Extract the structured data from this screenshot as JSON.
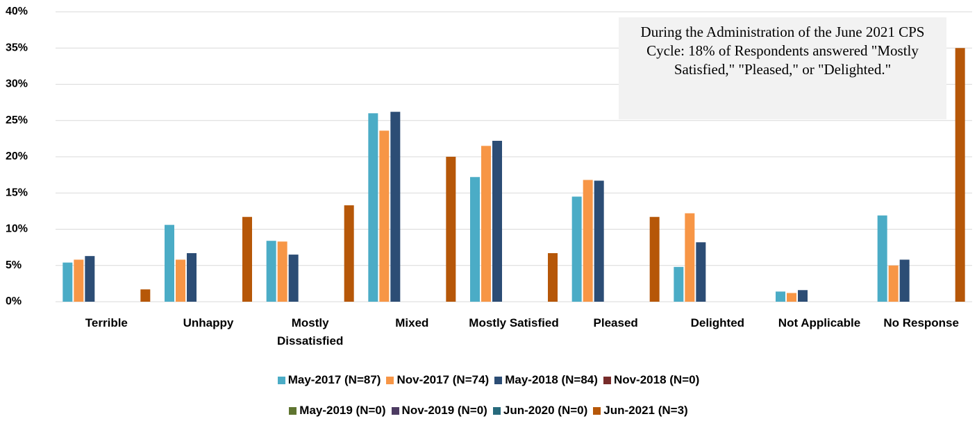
{
  "chart_data": {
    "type": "bar",
    "annotation": "During the Administration of the June 2021 CPS Cycle: 18% of Respondents answered \"Mostly Satisfied,\" \"Pleased,\" or \"Delighted.\"",
    "categories": [
      "Terrible",
      "Unhappy",
      "Mostly Dissatisfied",
      "Mixed",
      "Mostly Satisfied",
      "Pleased",
      "Delighted",
      "Not Applicable",
      "No Response"
    ],
    "series": [
      {
        "name": "May-2017 (N=87)",
        "color": "#4bacc6",
        "values": [
          5.4,
          10.6,
          8.4,
          26.0,
          17.2,
          14.5,
          4.8,
          1.4,
          11.9
        ]
      },
      {
        "name": "Nov-2017 (N=74)",
        "color": "#f79646",
        "values": [
          5.8,
          5.8,
          8.3,
          23.6,
          21.5,
          16.8,
          12.2,
          1.2,
          5.0
        ]
      },
      {
        "name": "May-2018 (N=84)",
        "color": "#2c4d75",
        "values": [
          6.3,
          6.7,
          6.5,
          26.2,
          22.2,
          16.7,
          8.2,
          1.6,
          5.8
        ]
      },
      {
        "name": "Nov-2018 (N=0)",
        "color": "#772c2a",
        "values": [
          null,
          null,
          null,
          null,
          null,
          null,
          null,
          null,
          null
        ]
      },
      {
        "name": "May-2019 (N=0)",
        "color": "#5f7530",
        "values": [
          null,
          null,
          null,
          null,
          null,
          null,
          null,
          null,
          null
        ]
      },
      {
        "name": "Nov-2019 (N=0)",
        "color": "#4d3b62",
        "values": [
          null,
          null,
          null,
          null,
          null,
          null,
          null,
          null,
          null
        ]
      },
      {
        "name": "Jun-2020 (N=0)",
        "color": "#276a7c",
        "values": [
          null,
          null,
          null,
          null,
          null,
          null,
          null,
          null,
          null
        ]
      },
      {
        "name": "Jun-2021 (N=3)",
        "color": "#b65708",
        "values": [
          1.7,
          11.7,
          13.3,
          20.0,
          6.7,
          11.7,
          null,
          null,
          35.0
        ]
      }
    ],
    "ylim": [
      0,
      40
    ],
    "yticks": [
      {
        "value": 0,
        "label": "0%"
      },
      {
        "value": 5,
        "label": "5%"
      },
      {
        "value": 10,
        "label": "10%"
      },
      {
        "value": 15,
        "label": "15%"
      },
      {
        "value": 20,
        "label": "20%"
      },
      {
        "value": 25,
        "label": "25%"
      },
      {
        "value": 30,
        "label": "30%"
      },
      {
        "value": 35,
        "label": "35%"
      },
      {
        "value": 40,
        "label": "40%"
      }
    ],
    "grid": true
  }
}
